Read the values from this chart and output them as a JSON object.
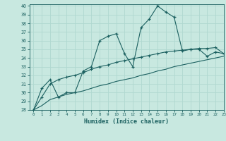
{
  "xlabel": "Humidex (Indice chaleur)",
  "ylabel": "",
  "xlim": [
    -0.5,
    23
  ],
  "ylim": [
    28,
    40.2
  ],
  "yticks": [
    28,
    29,
    30,
    31,
    32,
    33,
    34,
    35,
    36,
    37,
    38,
    39,
    40
  ],
  "xticks": [
    0,
    1,
    2,
    3,
    4,
    5,
    6,
    7,
    8,
    9,
    10,
    11,
    12,
    13,
    14,
    15,
    16,
    17,
    18,
    19,
    20,
    21,
    22,
    23
  ],
  "bg_color": "#c8e8e0",
  "line_color": "#1b6060",
  "grid_color": "#b0d8d0",
  "line1_x": [
    0,
    1,
    2,
    3,
    4,
    5,
    6,
    7,
    8,
    9,
    10,
    11,
    12,
    13,
    14,
    15,
    16,
    17,
    18,
    19,
    20,
    21,
    22,
    23
  ],
  "line1_y": [
    28.0,
    30.5,
    31.5,
    29.5,
    30.0,
    30.0,
    32.5,
    33.0,
    36.0,
    36.5,
    36.8,
    34.5,
    33.0,
    37.5,
    38.5,
    40.0,
    39.3,
    38.7,
    34.8,
    35.0,
    35.0,
    34.2,
    34.7,
    34.5
  ],
  "line2_x": [
    0,
    1,
    2,
    3,
    4,
    5,
    6,
    7,
    8,
    9,
    10,
    11,
    12,
    13,
    14,
    15,
    16,
    17,
    18,
    19,
    20,
    21,
    22,
    23
  ],
  "line2_y": [
    28.0,
    29.5,
    31.0,
    31.5,
    31.8,
    32.0,
    32.3,
    32.7,
    33.0,
    33.2,
    33.5,
    33.7,
    33.9,
    34.1,
    34.3,
    34.5,
    34.7,
    34.8,
    34.9,
    35.0,
    35.1,
    35.1,
    35.2,
    34.5
  ],
  "line3_x": [
    0,
    1,
    2,
    3,
    4,
    5,
    6,
    7,
    8,
    9,
    10,
    11,
    12,
    13,
    14,
    15,
    16,
    17,
    18,
    19,
    20,
    21,
    22,
    23
  ],
  "line3_y": [
    28.0,
    28.5,
    29.2,
    29.5,
    29.8,
    30.0,
    30.2,
    30.5,
    30.8,
    31.0,
    31.3,
    31.5,
    31.7,
    32.0,
    32.2,
    32.5,
    32.7,
    33.0,
    33.2,
    33.4,
    33.6,
    33.8,
    34.0,
    34.2
  ]
}
